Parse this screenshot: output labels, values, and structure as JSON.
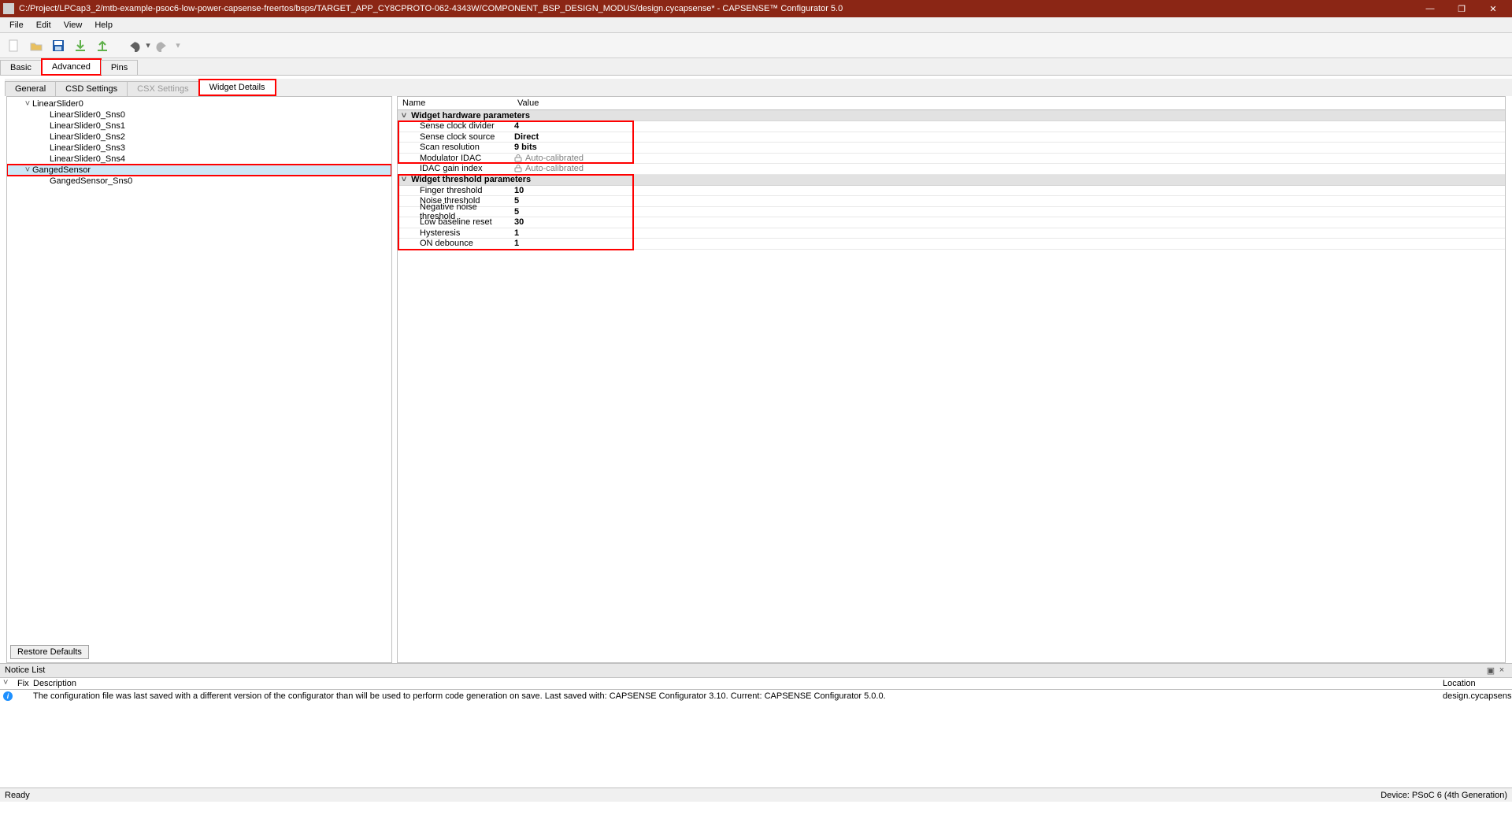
{
  "window": {
    "title": "C:/Project/LPCap3_2/mtb-example-psoc6-low-power-capsense-freertos/bsps/TARGET_APP_CY8CPROTO-062-4343W/COMPONENT_BSP_DESIGN_MODUS/design.cycapsense* - CAPSENSE™ Configurator 5.0"
  },
  "menu": {
    "file": "File",
    "edit": "Edit",
    "view": "View",
    "help": "Help"
  },
  "tabs_main": {
    "basic": "Basic",
    "advanced": "Advanced",
    "pins": "Pins"
  },
  "tabs_sub": {
    "general": "General",
    "csd": "CSD Settings",
    "csx": "CSX Settings",
    "widget": "Widget Details"
  },
  "tree": {
    "items": [
      {
        "label": "LinearSlider0",
        "indent": 0,
        "expand": "˅"
      },
      {
        "label": "LinearSlider0_Sns0",
        "indent": 1
      },
      {
        "label": "LinearSlider0_Sns1",
        "indent": 1
      },
      {
        "label": "LinearSlider0_Sns2",
        "indent": 1
      },
      {
        "label": "LinearSlider0_Sns3",
        "indent": 1
      },
      {
        "label": "LinearSlider0_Sns4",
        "indent": 1
      },
      {
        "label": "GangedSensor",
        "indent": 0,
        "expand": "˅",
        "selected": true,
        "highlight": true
      },
      {
        "label": "GangedSensor_Sns0",
        "indent": 1
      }
    ]
  },
  "restore_label": "Restore Defaults",
  "prop_header": {
    "name": "Name",
    "value": "Value"
  },
  "groups": [
    {
      "title": "Widget hardware parameters",
      "highlight_range": [
        0,
        3
      ],
      "rows": [
        {
          "name": "Sense clock divider",
          "value": "4"
        },
        {
          "name": "Sense clock source",
          "value": "Direct"
        },
        {
          "name": "Scan resolution",
          "value": "9 bits"
        },
        {
          "name": "Modulator IDAC",
          "value": "Auto-calibrated",
          "auto": true
        },
        {
          "name": "IDAC gain index",
          "value": "Auto-calibrated",
          "auto": true
        }
      ]
    },
    {
      "title": "Widget threshold parameters",
      "highlight_full": true,
      "rows": [
        {
          "name": "Finger threshold",
          "value": "10"
        },
        {
          "name": "Noise threshold",
          "value": "5"
        },
        {
          "name": "Negative noise threshold",
          "value": "5"
        },
        {
          "name": "Low baseline reset",
          "value": "30"
        },
        {
          "name": "Hysteresis",
          "value": "1"
        },
        {
          "name": "ON debounce",
          "value": "1"
        }
      ]
    }
  ],
  "notice": {
    "title": "Notice List",
    "cols": {
      "fix": "Fix",
      "desc": "Description",
      "loc": "Location"
    },
    "rows": [
      {
        "desc": "The configuration file was last saved with a different version of the configurator than will be used to perform code generation on save. Last saved with: CAPSENSE Configurator 3.10. Current: CAPSENSE Configurator 5.0.0.",
        "loc": "design.cycapsense"
      }
    ]
  },
  "status": {
    "left": "Ready",
    "right": "Device: PSoC 6 (4th Generation)"
  },
  "colors": {
    "highlight": "#ff0000",
    "selection": "#cde8f7",
    "titlebar": "#8b2615"
  }
}
